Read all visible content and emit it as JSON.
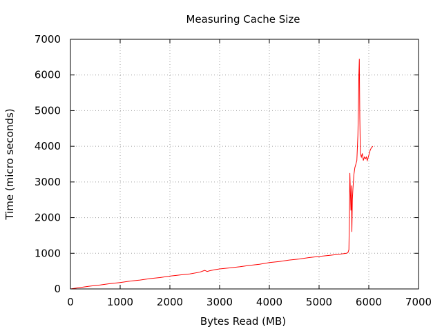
{
  "chart_data": {
    "type": "line",
    "title": "Measuring Cache Size",
    "xlabel": "Bytes Read (MB)",
    "ylabel": "Time (micro seconds)",
    "xlim": [
      0,
      7000
    ],
    "ylim": [
      0,
      7000
    ],
    "xticks": [
      "0",
      "1000",
      "2000",
      "3000",
      "4000",
      "5000",
      "6000",
      "7000"
    ],
    "yticks": [
      "0",
      "1000",
      "2000",
      "3000",
      "4000",
      "5000",
      "6000",
      "7000"
    ],
    "grid": true,
    "series_color": "#ff0000",
    "series": [
      {
        "x": [
          0,
          200,
          400,
          600,
          800,
          1000,
          1200,
          1400,
          1600,
          1800,
          2000,
          2200,
          2400,
          2600,
          2700,
          2750,
          2800,
          2900,
          3000,
          3200,
          3400,
          3600,
          3800,
          4000,
          4200,
          4400,
          4600,
          4800,
          5000,
          5200,
          5400,
          5550,
          5580,
          5600,
          5610,
          5620,
          5640,
          5650,
          5660,
          5670,
          5680,
          5700,
          5720,
          5740,
          5760,
          5780,
          5790,
          5800,
          5810,
          5820,
          5830,
          5850,
          5870,
          5890,
          5910,
          5930,
          5950,
          5970,
          5990,
          6010,
          6030,
          6050,
          6080
        ],
        "y": [
          0,
          40,
          80,
          110,
          150,
          180,
          220,
          250,
          290,
          320,
          360,
          390,
          420,
          470,
          520,
          490,
          510,
          540,
          560,
          590,
          620,
          660,
          690,
          740,
          770,
          810,
          840,
          880,
          910,
          940,
          970,
          1000,
          1020,
          1100,
          2000,
          3250,
          2200,
          2900,
          1600,
          2500,
          2800,
          3200,
          3400,
          3500,
          3600,
          4300,
          5000,
          6000,
          6450,
          4800,
          3800,
          3700,
          3800,
          3600,
          3700,
          3650,
          3700,
          3600,
          3700,
          3800,
          3900,
          3950,
          4000
        ]
      }
    ]
  }
}
